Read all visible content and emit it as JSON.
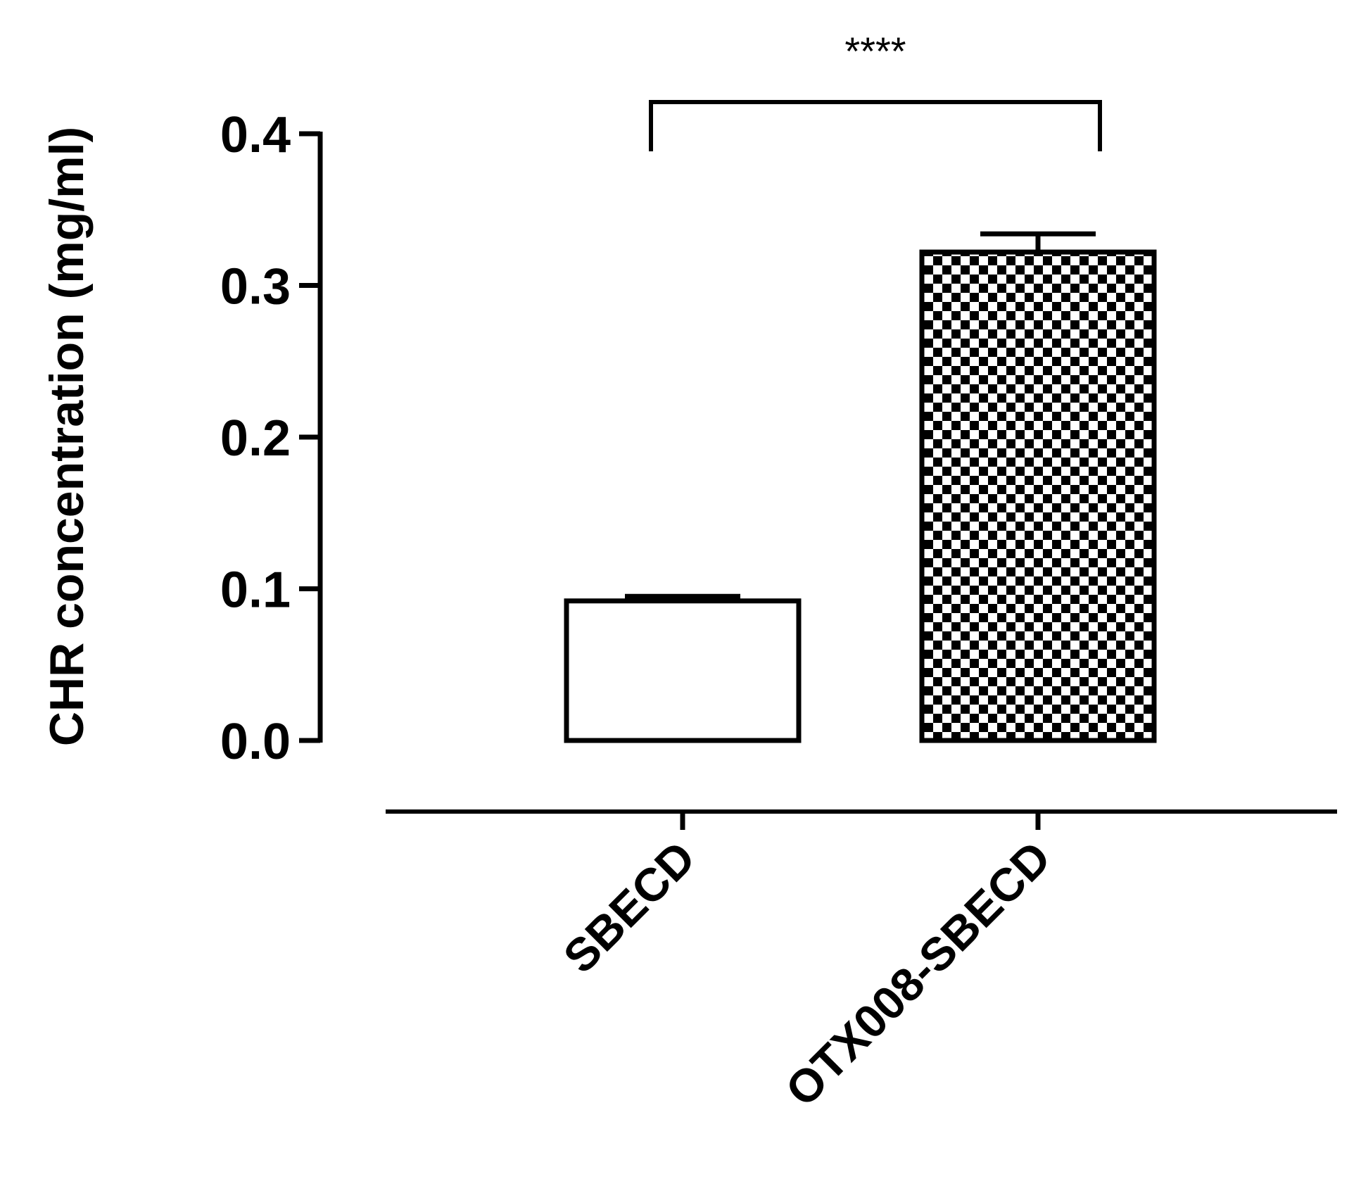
{
  "chart_data": {
    "type": "bar",
    "title": "",
    "xlabel": "",
    "ylabel": "CHR concentration (mg/ml)",
    "ylim": [
      0,
      0.4
    ],
    "yticks": [
      0.0,
      0.1,
      0.2,
      0.3,
      0.4
    ],
    "ytick_labels": [
      "0.0",
      "0.1",
      "0.2",
      "0.3",
      "0.4"
    ],
    "categories": [
      "SBECD",
      "OTX008-SBECD"
    ],
    "values": [
      0.092,
      0.322
    ],
    "error": [
      0.003,
      0.012
    ],
    "bar_fills": [
      "white",
      "checkerboard"
    ],
    "significance": {
      "label": "****",
      "between": [
        "SBECD",
        "OTX008-SBECD"
      ]
    },
    "grid": false,
    "legend": "none",
    "colors": {
      "stroke": "#000000",
      "background": "#ffffff"
    }
  }
}
